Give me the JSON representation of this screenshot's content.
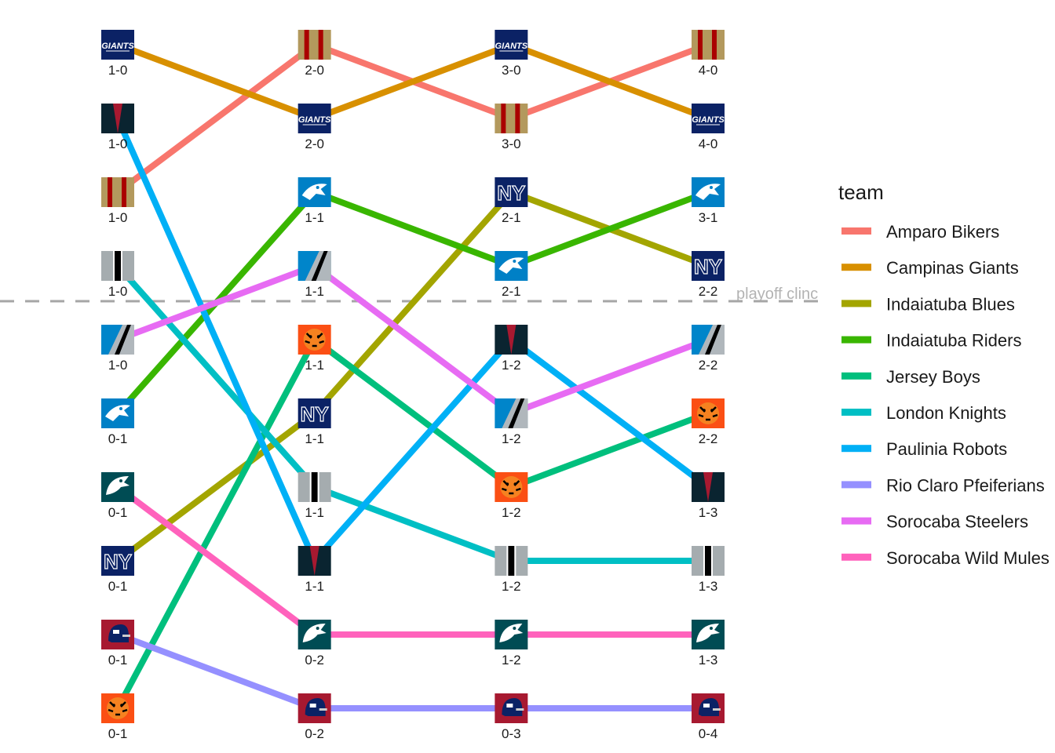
{
  "chart_data": {
    "type": "bump",
    "x": [
      1,
      2,
      3,
      4
    ],
    "y_reversed": true,
    "grid": false,
    "legend": {
      "title": "team",
      "placement": "right"
    },
    "reference_line": {
      "rank": 4.5,
      "style": "dashed",
      "color": "#A6A6A6",
      "label": "playoff clinc"
    },
    "series": [
      {
        "name": "Amparo Bikers",
        "color": "#F8766D",
        "logo": "bikers",
        "ranks": [
          3,
          1,
          2,
          1
        ],
        "records": [
          "1-0",
          "2-0",
          "3-0",
          "4-0"
        ]
      },
      {
        "name": "Campinas Giants",
        "color": "#D89000",
        "logo": "giants",
        "ranks": [
          1,
          2,
          1,
          2
        ],
        "records": [
          "1-0",
          "2-0",
          "3-0",
          "4-0"
        ]
      },
      {
        "name": "Indaiatuba Blues",
        "color": "#A3A500",
        "logo": "ny",
        "ranks": [
          8,
          6,
          3,
          4
        ],
        "records": [
          "0-1",
          "1-1",
          "2-1",
          "2-2"
        ]
      },
      {
        "name": "Indaiatuba Riders",
        "color": "#39B600",
        "logo": "panther",
        "ranks": [
          6,
          3,
          4,
          3
        ],
        "records": [
          "0-1",
          "1-1",
          "2-1",
          "3-1"
        ]
      },
      {
        "name": "Jersey Boys",
        "color": "#00BF7D",
        "logo": "tiger",
        "ranks": [
          10,
          5,
          7,
          6
        ],
        "records": [
          "0-1",
          "1-1",
          "1-2",
          "2-2"
        ]
      },
      {
        "name": "London Knights",
        "color": "#00BFC4",
        "logo": "knights",
        "ranks": [
          4,
          7,
          8,
          8
        ],
        "records": [
          "1-0",
          "1-1",
          "1-2",
          "1-3"
        ]
      },
      {
        "name": "Paulinia Robots",
        "color": "#00B0F6",
        "logo": "robots",
        "ranks": [
          2,
          8,
          5,
          7
        ],
        "records": [
          "1-0",
          "1-1",
          "1-2",
          "1-3"
        ]
      },
      {
        "name": "Rio Claro Pfeiferians",
        "color": "#9590FF",
        "logo": "helmet",
        "ranks": [
          9,
          10,
          10,
          10
        ],
        "records": [
          "0-1",
          "0-2",
          "0-3",
          "0-4"
        ]
      },
      {
        "name": "Sorocaba Steelers",
        "color": "#E76BF3",
        "logo": "steelers",
        "ranks": [
          5,
          4,
          6,
          5
        ],
        "records": [
          "1-0",
          "1-1",
          "1-2",
          "2-2"
        ]
      },
      {
        "name": "Sorocaba Wild Mules",
        "color": "#FF62BC",
        "logo": "eagle",
        "ranks": [
          7,
          9,
          9,
          9
        ],
        "records": [
          "0-1",
          "0-2",
          "1-2",
          "1-3"
        ]
      }
    ],
    "logo_text": {
      "giants": "GIANTS",
      "ny": "NY"
    }
  }
}
